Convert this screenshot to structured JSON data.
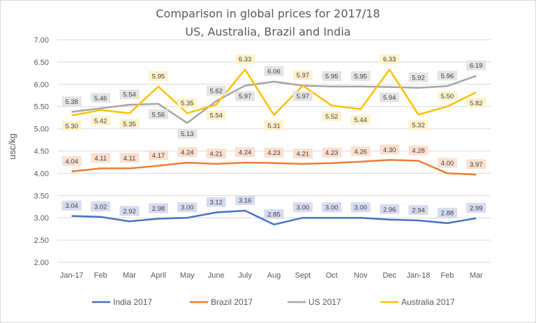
{
  "chart_data": {
    "type": "line",
    "title": "Comparison in global prices for 2017/18",
    "subtitle": "US, Australia, Brazil and India",
    "xlabel": "",
    "ylabel": "usc/kg",
    "categories": [
      "Jan-17",
      "Feb",
      "Mar",
      "April",
      "May",
      "June",
      "July",
      "Aug",
      "Sept",
      "Oct",
      "Nov",
      "Dec",
      "Jan-18",
      "Feb",
      "Mar"
    ],
    "ylim": [
      2.0,
      7.0
    ],
    "yticks": [
      "2.00",
      "2.50",
      "3.00",
      "3.50",
      "4.00",
      "4.50",
      "5.00",
      "5.50",
      "6.00",
      "6.50",
      "7.00"
    ],
    "grid": true,
    "legend_position": "bottom",
    "series": [
      {
        "name": "India 2017",
        "color": "#4472c4",
        "label_bg": "#d6dcf0",
        "values": [
          3.04,
          3.02,
          2.92,
          2.98,
          3.0,
          3.12,
          3.16,
          2.85,
          3.0,
          3.0,
          3.0,
          2.96,
          2.94,
          2.88,
          2.99
        ],
        "labels": [
          "3.04",
          "3.02",
          "2.92",
          "2.98",
          "3.00",
          "3.12",
          "3.16",
          "2.85",
          "3.00",
          "3.00",
          "3.00",
          "2.96",
          "2.94",
          "2.88",
          "2.99"
        ]
      },
      {
        "name": "Brazil 2017",
        "color": "#ed7d31",
        "label_bg": "#fbe0cf",
        "values": [
          4.04,
          4.11,
          4.11,
          4.17,
          4.24,
          4.21,
          4.24,
          4.23,
          4.21,
          4.23,
          4.26,
          4.3,
          4.28,
          4.0,
          3.97
        ],
        "labels": [
          "4.04",
          "4.11",
          "4.11",
          "4.17",
          "4.24",
          "4.21",
          "4.24",
          "4.23",
          "4.21",
          "4.23",
          "4.26",
          "4.30",
          "4.28",
          "4.00",
          "3.97"
        ]
      },
      {
        "name": "US 2017",
        "color": "#a5a5a5",
        "label_bg": "#e4e4e4",
        "values": [
          5.38,
          5.46,
          5.54,
          5.56,
          5.13,
          5.62,
          5.97,
          6.06,
          5.97,
          5.95,
          5.95,
          5.94,
          5.92,
          5.96,
          6.19
        ],
        "labels": [
          "5.38",
          "5.46",
          "5.54",
          "5.56",
          "5.13",
          "5.62",
          "5.97",
          "6.06",
          "5.97",
          "5.95",
          "5.95",
          "5.94",
          "5.92",
          "5.96",
          "6.19"
        ]
      },
      {
        "name": "Australia 2017",
        "color": "#ffc000",
        "label_bg": "#fff2cc",
        "values": [
          5.3,
          5.42,
          5.35,
          5.95,
          5.35,
          5.54,
          6.33,
          5.31,
          5.97,
          5.52,
          5.44,
          6.33,
          5.32,
          5.5,
          5.82
        ],
        "labels": [
          "5.30",
          "5.42",
          "5.35",
          "5.95",
          "5.35",
          "5.54",
          "6.33",
          "5.31",
          "5.97",
          "5.52",
          "5.44",
          "6.33",
          "5.32",
          "5.50",
          "5.82"
        ]
      }
    ]
  }
}
